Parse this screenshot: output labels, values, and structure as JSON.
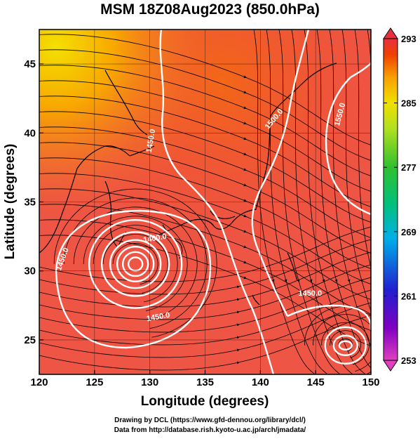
{
  "title": "MSM 18Z08Aug2023 (850.0hPa)",
  "axes": {
    "xlabel": "Longitude (degrees)",
    "ylabel": "Latitude  (degrees)",
    "x_ticks": [
      "120",
      "125",
      "130",
      "135",
      "140",
      "145",
      "150"
    ],
    "y_ticks": [
      "25",
      "30",
      "35",
      "40",
      "45"
    ],
    "xlim": [
      120,
      150
    ],
    "ylim": [
      22.5,
      47.5
    ]
  },
  "colorbar": {
    "ticks": [
      "293",
      "285",
      "277",
      "269",
      "261",
      "253"
    ],
    "range": [
      253,
      293
    ],
    "colors_low_to_high": [
      "#e040c0",
      "#8000c0",
      "#2020d0",
      "#00b0e8",
      "#00c080",
      "#30c030",
      "#b0e020",
      "#f0e000",
      "#f8a000",
      "#f04000",
      "#e83040"
    ]
  },
  "contours": [
    {
      "label": "1450.0"
    },
    {
      "label": "1450.0"
    },
    {
      "label": "1500.0"
    },
    {
      "label": "1550.0"
    },
    {
      "label": "1400.0"
    },
    {
      "label": "1450.0"
    },
    {
      "label": "1450.0"
    }
  ],
  "credits": {
    "line1": "Drawing by DCL (https://www.gfd-dennou.org/library/dcl/)",
    "line2": "Data from http://database.rish.kyoto-u.ac.jp/arch/jmadata/"
  }
}
